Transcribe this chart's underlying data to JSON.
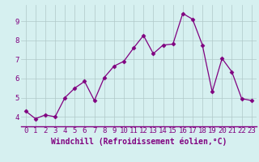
{
  "x": [
    0,
    1,
    2,
    3,
    4,
    5,
    6,
    7,
    8,
    9,
    10,
    11,
    12,
    13,
    14,
    15,
    16,
    17,
    18,
    19,
    20,
    21,
    22,
    23
  ],
  "y": [
    4.3,
    3.9,
    4.1,
    4.0,
    5.0,
    5.5,
    5.85,
    4.85,
    6.05,
    6.65,
    6.9,
    7.6,
    8.25,
    7.3,
    7.75,
    7.8,
    9.4,
    9.1,
    7.75,
    5.3,
    7.05,
    6.35,
    4.95,
    4.85
  ],
  "line_color": "#800080",
  "marker": "D",
  "marker_size": 2.5,
  "bg_color": "#d6f0f0",
  "grid_color": "#b0c8c8",
  "xlabel": "Windchill (Refroidissement éolien,°C)",
  "xlabel_color": "#800080",
  "tick_color": "#800080",
  "tick_fontsize": 6.5,
  "ylim": [
    3.5,
    9.85
  ],
  "yticks": [
    4,
    5,
    6,
    7,
    8,
    9
  ],
  "xticks": [
    0,
    1,
    2,
    3,
    4,
    5,
    6,
    7,
    8,
    9,
    10,
    11,
    12,
    13,
    14,
    15,
    16,
    17,
    18,
    19,
    20,
    21,
    22,
    23
  ],
  "spine_color": "#800080",
  "bottom_line_color": "#800080"
}
